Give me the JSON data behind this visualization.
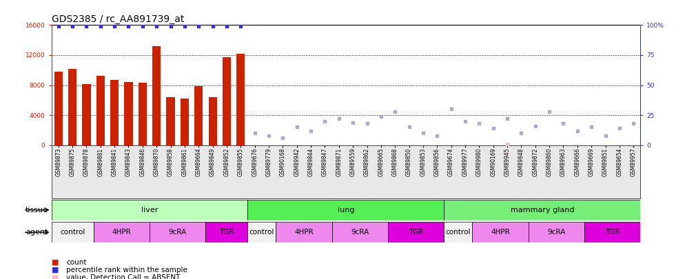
{
  "title": "GDS2385 / rc_AA891739_at",
  "samples": [
    "GSM89873",
    "GSM89875",
    "GSM89878",
    "GSM89881",
    "GSM89841",
    "GSM89843",
    "GSM89846",
    "GSM89870",
    "GSM89858",
    "GSM89861",
    "GSM89664",
    "GSM89849",
    "GSM89852",
    "GSM89855",
    "GSM89676",
    "GSM89779",
    "GSM90168",
    "GSM89942",
    "GSM89844",
    "GSM89847",
    "GSM89871",
    "GSM89559",
    "GSM89862",
    "GSM89665",
    "GSM89868",
    "GSM89850",
    "GSM89853",
    "GSM89856",
    "GSM89674",
    "GSM89977",
    "GSM89980",
    "GSM90169",
    "GSM89945",
    "GSM89848",
    "GSM89872",
    "GSM89860",
    "GSM89963",
    "GSM89666",
    "GSM89669",
    "GSM89851",
    "GSM89654",
    "GSM89957"
  ],
  "bar_counts": [
    9800,
    10200,
    8100,
    9200,
    8700,
    8400,
    8300,
    13200,
    6400,
    6200,
    7900,
    6400,
    11700,
    12200,
    null,
    null,
    null,
    null,
    null,
    null,
    null,
    null,
    null,
    null,
    null,
    null,
    null,
    null,
    null,
    null,
    null,
    null,
    null,
    null,
    null,
    null,
    null,
    null,
    null,
    null,
    null,
    null
  ],
  "percentile_rank_present": [
    99,
    99,
    99,
    99,
    99,
    99,
    99,
    99,
    99,
    99,
    99,
    99,
    99,
    99,
    null,
    null,
    null,
    null,
    null,
    null,
    null,
    null,
    null,
    null,
    null,
    null,
    null,
    null,
    null,
    null,
    null,
    null,
    null,
    null,
    null,
    null,
    null,
    null,
    null,
    null,
    null,
    null
  ],
  "absent_rank_vals": [
    null,
    null,
    null,
    null,
    null,
    null,
    null,
    null,
    null,
    null,
    null,
    null,
    null,
    null,
    10,
    8,
    6,
    15,
    12,
    20,
    22,
    19,
    18,
    24,
    28,
    15,
    10,
    8,
    30,
    20,
    18,
    14,
    22,
    10,
    16,
    28,
    18,
    12,
    15,
    8,
    14,
    18
  ],
  "absent_value_vals": [
    null,
    null,
    null,
    null,
    null,
    null,
    null,
    null,
    null,
    null,
    null,
    null,
    null,
    null,
    null,
    null,
    null,
    null,
    null,
    null,
    null,
    null,
    null,
    null,
    null,
    null,
    null,
    null,
    null,
    null,
    null,
    null,
    1,
    null,
    null,
    null,
    null,
    null,
    null,
    null,
    null,
    null
  ],
  "tissue_regions": [
    {
      "label": "liver",
      "start": 0,
      "end": 14,
      "color": "#AAFFAA"
    },
    {
      "label": "lung",
      "start": 14,
      "end": 28,
      "color": "#55DD55"
    },
    {
      "label": "mammary gland",
      "start": 28,
      "end": 42,
      "color": "#77EE77"
    }
  ],
  "agent_regions": [
    {
      "label": "control",
      "start": 0,
      "end": 3,
      "color": "#F0F0F0"
    },
    {
      "label": "4HPR",
      "start": 3,
      "end": 7,
      "color": "#EE88EE"
    },
    {
      "label": "9cRA",
      "start": 7,
      "end": 11,
      "color": "#EE88EE"
    },
    {
      "label": "TGR",
      "start": 11,
      "end": 14,
      "color": "#DD00DD"
    },
    {
      "label": "control",
      "start": 14,
      "end": 16,
      "color": "#F0F0F0"
    },
    {
      "label": "4HPR",
      "start": 16,
      "end": 20,
      "color": "#EE88EE"
    },
    {
      "label": "9cRA",
      "start": 20,
      "end": 24,
      "color": "#EE88EE"
    },
    {
      "label": "TGR",
      "start": 24,
      "end": 28,
      "color": "#DD00DD"
    },
    {
      "label": "control",
      "start": 28,
      "end": 30,
      "color": "#F0F0F0"
    },
    {
      "label": "4HPR",
      "start": 30,
      "end": 34,
      "color": "#EE88EE"
    },
    {
      "label": "9cRA",
      "start": 34,
      "end": 38,
      "color": "#EE88EE"
    },
    {
      "label": "TGR",
      "start": 38,
      "end": 42,
      "color": "#DD00DD"
    }
  ],
  "ylim_left": [
    0,
    16000
  ],
  "ylim_right": [
    0,
    100
  ],
  "yticks_left": [
    0,
    4000,
    8000,
    12000,
    16000
  ],
  "yticks_right": [
    0,
    25,
    50,
    75,
    100
  ],
  "bar_color": "#CC2200",
  "dot_color": "#3333CC",
  "absent_rank_color": "#AAAACC",
  "absent_value_color": "#FFBBBB",
  "background_color": "#ffffff",
  "title_fontsize": 10,
  "tick_fontsize": 6.5,
  "label_fontsize": 8,
  "xtick_fontsize": 5.5
}
